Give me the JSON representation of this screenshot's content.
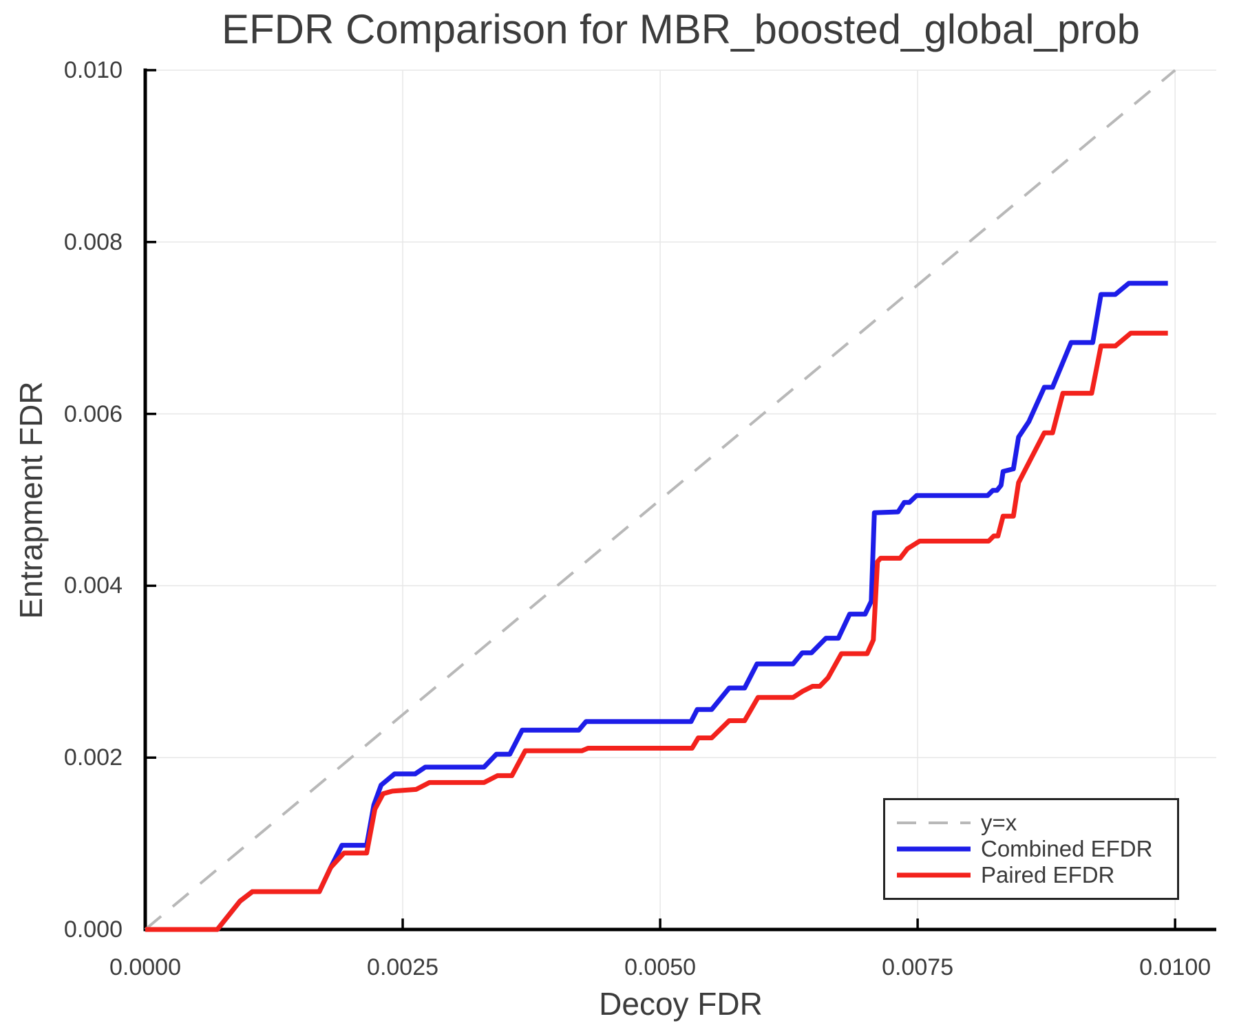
{
  "figure": {
    "title": "EFDR Comparison for MBR_boosted_global_prob",
    "xlabel": "Decoy FDR",
    "ylabel": "Entrapment FDR"
  },
  "colors": {
    "background": "#ffffff",
    "grid": "#e7e7e7",
    "spine": "#000000",
    "tick": "#000000",
    "text": "#3c3c3c",
    "diagonal": "#b8b8b8",
    "combined": "#1d1de8",
    "paired": "#f3221c"
  },
  "chart_data": {
    "type": "line",
    "title": "EFDR Comparison for MBR_boosted_global_prob",
    "xlabel": "Decoy FDR",
    "ylabel": "Entrapment FDR",
    "xlim": [
      0,
      0.0104
    ],
    "ylim": [
      0,
      0.01
    ],
    "grid": true,
    "legend_position": "lower right",
    "x_ticks": {
      "values": [
        0,
        0.0025,
        0.005,
        0.0075,
        0.01
      ],
      "labels": [
        "0.0000",
        "0.0025",
        "0.0050",
        "0.0075",
        "0.0100"
      ]
    },
    "y_ticks": {
      "values": [
        0,
        0.002,
        0.004,
        0.006,
        0.008,
        0.01
      ],
      "labels": [
        "0.000",
        "0.002",
        "0.004",
        "0.006",
        "0.008",
        "0.010"
      ]
    },
    "series": [
      {
        "name": "y=x",
        "color": "#b8b8b8",
        "linestyle": "dashed",
        "linewidth": 4,
        "points": [
          [
            0,
            0
          ],
          [
            0.01,
            0.01
          ]
        ]
      },
      {
        "name": "Combined EFDR",
        "color": "#1d1de8",
        "linestyle": "solid",
        "linewidth": 7,
        "points": [
          [
            0.0,
            0.0
          ],
          [
            0.0007,
            0.0
          ],
          [
            0.00092,
            0.00033
          ],
          [
            0.00104,
            0.00044
          ],
          [
            0.00169,
            0.00044
          ],
          [
            0.0018,
            0.00072
          ],
          [
            0.00191,
            0.00098
          ],
          [
            0.00215,
            0.00098
          ],
          [
            0.00222,
            0.00145
          ],
          [
            0.00229,
            0.00168
          ],
          [
            0.00242,
            0.00181
          ],
          [
            0.00262,
            0.00181
          ],
          [
            0.00272,
            0.00189
          ],
          [
            0.00329,
            0.00189
          ],
          [
            0.00341,
            0.00204
          ],
          [
            0.00354,
            0.00204
          ],
          [
            0.00366,
            0.00232
          ],
          [
            0.00421,
            0.00232
          ],
          [
            0.00428,
            0.00242
          ],
          [
            0.0053,
            0.00242
          ],
          [
            0.00536,
            0.00256
          ],
          [
            0.0055,
            0.00256
          ],
          [
            0.00567,
            0.00281
          ],
          [
            0.00582,
            0.00281
          ],
          [
            0.00594,
            0.00309
          ],
          [
            0.00629,
            0.00309
          ],
          [
            0.00638,
            0.00322
          ],
          [
            0.00647,
            0.00322
          ],
          [
            0.00661,
            0.00339
          ],
          [
            0.00673,
            0.00339
          ],
          [
            0.00684,
            0.00367
          ],
          [
            0.00699,
            0.00367
          ],
          [
            0.00705,
            0.00382
          ],
          [
            0.00708,
            0.00485
          ],
          [
            0.00731,
            0.00486
          ],
          [
            0.00737,
            0.00497
          ],
          [
            0.00742,
            0.00497
          ],
          [
            0.00749,
            0.00505
          ],
          [
            0.00818,
            0.00505
          ],
          [
            0.00823,
            0.00511
          ],
          [
            0.00827,
            0.00511
          ],
          [
            0.00831,
            0.00517
          ],
          [
            0.00833,
            0.00533
          ],
          [
            0.00843,
            0.00536
          ],
          [
            0.00848,
            0.00573
          ],
          [
            0.00858,
            0.00591
          ],
          [
            0.00873,
            0.00631
          ],
          [
            0.00881,
            0.00631
          ],
          [
            0.00899,
            0.00683
          ],
          [
            0.0092,
            0.00683
          ],
          [
            0.00928,
            0.00739
          ],
          [
            0.00942,
            0.00739
          ],
          [
            0.00955,
            0.00752
          ],
          [
            0.00993,
            0.00752
          ]
        ]
      },
      {
        "name": "Paired EFDR",
        "color": "#f3221c",
        "linestyle": "solid",
        "linewidth": 7,
        "points": [
          [
            0.0,
            0.0
          ],
          [
            0.0007,
            0.0
          ],
          [
            0.00092,
            0.00033
          ],
          [
            0.00104,
            0.00044
          ],
          [
            0.00169,
            0.00044
          ],
          [
            0.0018,
            0.00072
          ],
          [
            0.00193,
            0.00089
          ],
          [
            0.00215,
            0.00089
          ],
          [
            0.00223,
            0.0014
          ],
          [
            0.00231,
            0.00158
          ],
          [
            0.0024,
            0.00161
          ],
          [
            0.00263,
            0.00163
          ],
          [
            0.00276,
            0.00171
          ],
          [
            0.00329,
            0.00171
          ],
          [
            0.00342,
            0.00179
          ],
          [
            0.00356,
            0.00179
          ],
          [
            0.00369,
            0.00208
          ],
          [
            0.00424,
            0.00208
          ],
          [
            0.0043,
            0.00211
          ],
          [
            0.00531,
            0.00211
          ],
          [
            0.00537,
            0.00223
          ],
          [
            0.0055,
            0.00223
          ],
          [
            0.00567,
            0.00243
          ],
          [
            0.00582,
            0.00243
          ],
          [
            0.00595,
            0.0027
          ],
          [
            0.00629,
            0.0027
          ],
          [
            0.00638,
            0.00277
          ],
          [
            0.00648,
            0.00283
          ],
          [
            0.00655,
            0.00283
          ],
          [
            0.00663,
            0.00293
          ],
          [
            0.00676,
            0.00321
          ],
          [
            0.00701,
            0.00321
          ],
          [
            0.00707,
            0.00337
          ],
          [
            0.00711,
            0.00428
          ],
          [
            0.00714,
            0.00432
          ],
          [
            0.00733,
            0.00432
          ],
          [
            0.0074,
            0.00443
          ],
          [
            0.00752,
            0.00452
          ],
          [
            0.00819,
            0.00452
          ],
          [
            0.00824,
            0.00458
          ],
          [
            0.00828,
            0.00458
          ],
          [
            0.00833,
            0.00481
          ],
          [
            0.00843,
            0.00481
          ],
          [
            0.00848,
            0.0052
          ],
          [
            0.00873,
            0.00578
          ],
          [
            0.00881,
            0.00578
          ],
          [
            0.00891,
            0.00624
          ],
          [
            0.00919,
            0.00624
          ],
          [
            0.00928,
            0.00679
          ],
          [
            0.00942,
            0.00679
          ],
          [
            0.00957,
            0.00694
          ],
          [
            0.00993,
            0.00694
          ]
        ]
      }
    ]
  }
}
